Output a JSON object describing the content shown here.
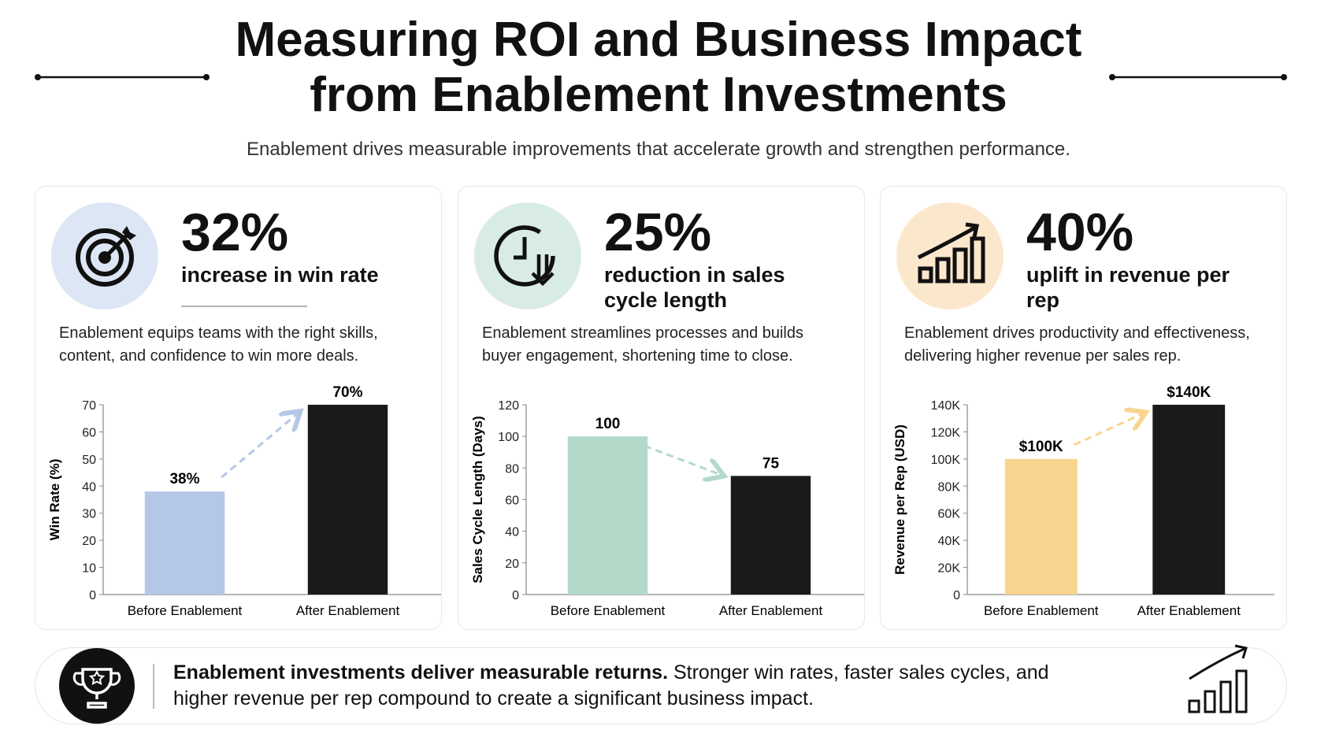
{
  "header": {
    "title": "Measuring ROI and Business Impact from Enablement Investments",
    "subtitle": "Enablement drives measurable improvements that accelerate growth and strengthen performance."
  },
  "cards": [
    {
      "stat": "32%",
      "stat_label": "increase in win rate",
      "description": "Enablement equips teams with the right skills, content, and confidence to win more deals."
    },
    {
      "stat": "25%",
      "stat_label": "reduction in sales cycle length",
      "description": "Enablement streamlines processes and builds buyer engagement, shortening time to close."
    },
    {
      "stat": "40%",
      "stat_label": "uplift in revenue per rep",
      "description": "Enablement drives productivity and effectiveness, delivering higher revenue per sales rep."
    }
  ],
  "chart_data": [
    {
      "type": "bar",
      "ylabel": "Win Rate (%)",
      "categories": [
        "Before Enablement",
        "After Enablement"
      ],
      "values": [
        38,
        70
      ],
      "value_labels": [
        "38%",
        "70%"
      ],
      "colors": [
        "#b4c7e7",
        "#1a1a1a"
      ],
      "ylim": [
        0,
        70
      ],
      "yticks": [
        0,
        10,
        20,
        30,
        40,
        50,
        60,
        70
      ]
    },
    {
      "type": "bar",
      "ylabel": "Sales Cycle Length (Days)",
      "categories": [
        "Before Enablement",
        "After Enablement"
      ],
      "values": [
        100,
        75
      ],
      "colors": [
        "#b3d9c9",
        "#1a1a1a"
      ],
      "ylim": [
        0,
        120
      ],
      "yticks": [
        0,
        20,
        40,
        60,
        80,
        100,
        120
      ]
    },
    {
      "type": "bar",
      "ylabel": "Revenue per Rep (USD)",
      "categories": [
        "Before Enablement",
        "After Enablement"
      ],
      "values": [
        100000,
        140000
      ],
      "value_labels": [
        "$100K",
        "$140K"
      ],
      "colors": [
        "#f8d58e",
        "#1a1a1a"
      ],
      "ylim": [
        0,
        140000
      ],
      "yticks": [
        0,
        {
          "value": 20000,
          "label": "20K"
        },
        {
          "value": 40000,
          "label": "40K"
        },
        {
          "value": 60000,
          "label": "60K"
        },
        {
          "value": 80000,
          "label": "80K"
        },
        {
          "value": 100000,
          "label": "100K"
        },
        {
          "value": 120000,
          "label": "120K"
        },
        {
          "value": 140000,
          "label": "140K"
        }
      ]
    }
  ],
  "footer": {
    "bold": "Enablement investments deliver measurable returns.",
    "text": "Stronger win rates, faster sales cycles, and higher revenue per rep compound to create a significant business impact."
  }
}
